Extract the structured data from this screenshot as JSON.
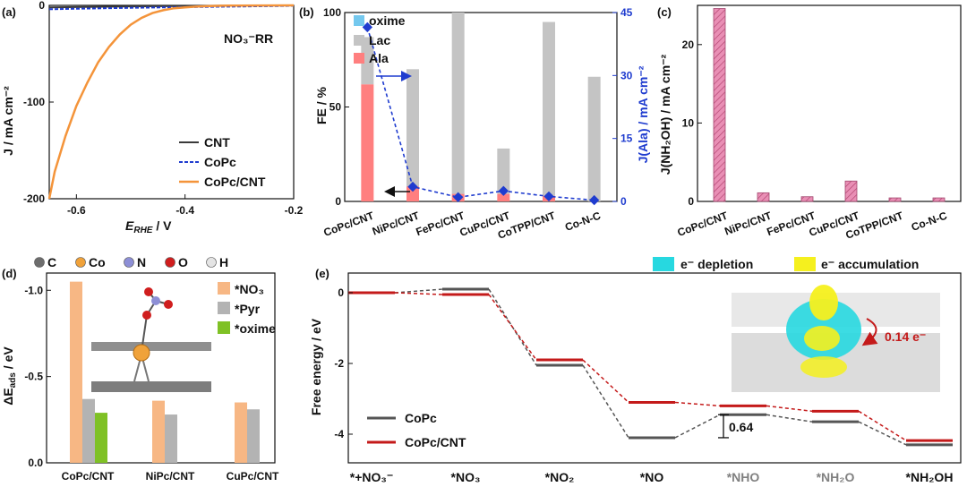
{
  "panel_letters": {
    "a": "(a)",
    "b": "(b)",
    "c": "(c)",
    "d": "(d)",
    "e": "(e)"
  },
  "colors": {
    "ala": "#ff7f7f",
    "lac": "#c4c4c4",
    "oxime": "#74c8ee",
    "cnt": "#3a3a3a",
    "copc": "#1f3ccf",
    "copc_cnt": "#f4943a",
    "nhoh": "#e98fb5",
    "no3": "#f7b784",
    "pyr": "#b3b3b3",
    "oxime_d": "#7fc125",
    "path_copc": "#555555",
    "path_copccnt": "#c41a1a",
    "depletion": "#27d8e0",
    "accumulation": "#f5f01e"
  },
  "chart_data": [
    {
      "id": "a",
      "type": "line",
      "annotation": "NO₃⁻RR",
      "xlabel": "E",
      "xlabel_sub": "RHE",
      "xlabel_unit": " / V",
      "ylabel": "J / mA cm⁻²",
      "xlim": [
        -0.65,
        -0.2
      ],
      "ylim": [
        -200,
        0
      ],
      "xticks": [
        "-0.6",
        "-0.4",
        "-0.2"
      ],
      "xtick_values": [
        -0.6,
        -0.4,
        -0.2
      ],
      "yticks": [
        "0",
        "-100",
        "-200"
      ],
      "ytick_values": [
        0,
        -100,
        -200
      ],
      "series": [
        {
          "name": "CNT",
          "x": [
            -0.65,
            -0.5,
            -0.35,
            -0.2
          ],
          "y": [
            -2,
            -1,
            -0.5,
            0
          ]
        },
        {
          "name": "CoPc",
          "x": [
            -0.65,
            -0.5,
            -0.35,
            -0.2
          ],
          "y": [
            -4,
            -2.5,
            -1.5,
            -0.5
          ]
        },
        {
          "name": "CoPc/CNT",
          "x": [
            -0.65,
            -0.64,
            -0.62,
            -0.6,
            -0.58,
            -0.56,
            -0.54,
            -0.52,
            -0.5,
            -0.48,
            -0.46,
            -0.44,
            -0.42,
            -0.4,
            -0.38,
            -0.36,
            -0.34,
            -0.32,
            -0.3,
            -0.2
          ],
          "y": [
            -200,
            -172,
            -135,
            -104,
            -80,
            -59,
            -43,
            -30,
            -20,
            -13,
            -8,
            -5,
            -3,
            -2,
            -1.3,
            -0.8,
            -0.5,
            -0.3,
            -0.2,
            0
          ]
        }
      ]
    },
    {
      "id": "b",
      "type": "bar",
      "categories": [
        "CoPc/CNT",
        "NiPc/CNT",
        "FePc/CNT",
        "CuPc/CNT",
        "CoTPP/CNT",
        "Co-N-C"
      ],
      "ylabel": "FE / %",
      "ylim": [
        0,
        100
      ],
      "yticks": [
        "0",
        "50",
        "100"
      ],
      "ytick_values": [
        0,
        50,
        100
      ],
      "y2label": "J(Ala) / mA cm⁻²",
      "y2lim": [
        0,
        45
      ],
      "y2ticks": [
        "0",
        "15",
        "30",
        "45"
      ],
      "y2tick_values": [
        0,
        15,
        30,
        45
      ],
      "series": [
        {
          "name": "oxime",
          "values": [
            0,
            0,
            0,
            0,
            0,
            0
          ]
        },
        {
          "name": "Lac",
          "values": [
            25,
            62,
            96,
            24,
            92,
            66
          ]
        },
        {
          "name": "Ala",
          "values": [
            62,
            8,
            4,
            4,
            3,
            0
          ]
        }
      ],
      "line_series": {
        "name": "J(Ala)",
        "values": [
          41.5,
          3.5,
          1,
          2.5,
          1.2,
          0.3
        ]
      }
    },
    {
      "id": "c",
      "type": "bar",
      "categories": [
        "CoPc/CNT",
        "NiPc/CNT",
        "FePc/CNT",
        "CuPc/CNT",
        "CoTPP/CNT",
        "Co-N-C"
      ],
      "ylabel": "J(NH₂OH) / mA cm⁻²",
      "ylim": [
        0,
        25
      ],
      "yticks": [
        "0",
        "10",
        "20"
      ],
      "ytick_values": [
        0,
        10,
        20
      ],
      "values": [
        24.6,
        1.1,
        0.6,
        2.6,
        0.45,
        0.45
      ]
    },
    {
      "id": "d",
      "type": "bar",
      "categories": [
        "CoPc/CNT",
        "NiPc/CNT",
        "CuPc/CNT"
      ],
      "ylabel": "ΔE",
      "ylabel_sub": "ads",
      "ylabel_unit": " / eV",
      "ylim": [
        0,
        -1.1
      ],
      "yticks": [
        "0.0",
        "-0.5",
        "-1.0"
      ],
      "ytick_values": [
        0,
        -0.5,
        -1.0
      ],
      "atom_legend": [
        "C",
        "Co",
        "N",
        "O",
        "H"
      ],
      "series": [
        {
          "name": "*NO₃",
          "values": [
            -1.05,
            -0.36,
            -0.35
          ]
        },
        {
          "name": "*Pyr",
          "values": [
            -0.37,
            -0.28,
            -0.31
          ]
        },
        {
          "name": "*oxime",
          "values": [
            -0.29,
            null,
            null
          ]
        }
      ]
    },
    {
      "id": "e",
      "type": "line",
      "ylabel": "Free energy / eV",
      "ylim": [
        -5,
        0.4
      ],
      "yticks": [
        "0",
        "-2",
        "-4"
      ],
      "ytick_values": [
        0,
        -2,
        -4
      ],
      "categories": [
        "*+NO₃⁻",
        "*NO₃",
        "*NO₂",
        "*NO",
        "*NHO",
        "*NH₂O",
        "*NH₂OH"
      ],
      "grey_categories": [
        "*NHO",
        "*NH₂O"
      ],
      "series": [
        {
          "name": "CoPc",
          "values": [
            0,
            0.1,
            -2.05,
            -4.1,
            -3.45,
            -3.65,
            -4.3
          ]
        },
        {
          "name": "CoPc/CNT",
          "values": [
            0,
            -0.05,
            -1.9,
            -3.1,
            -3.2,
            -3.35,
            -4.18
          ]
        }
      ],
      "annotation": "0.64",
      "legend_depletion": "e⁻ depletion",
      "legend_accumulation": "e⁻ accumulation",
      "charge_transfer": "0.14 e⁻"
    }
  ]
}
